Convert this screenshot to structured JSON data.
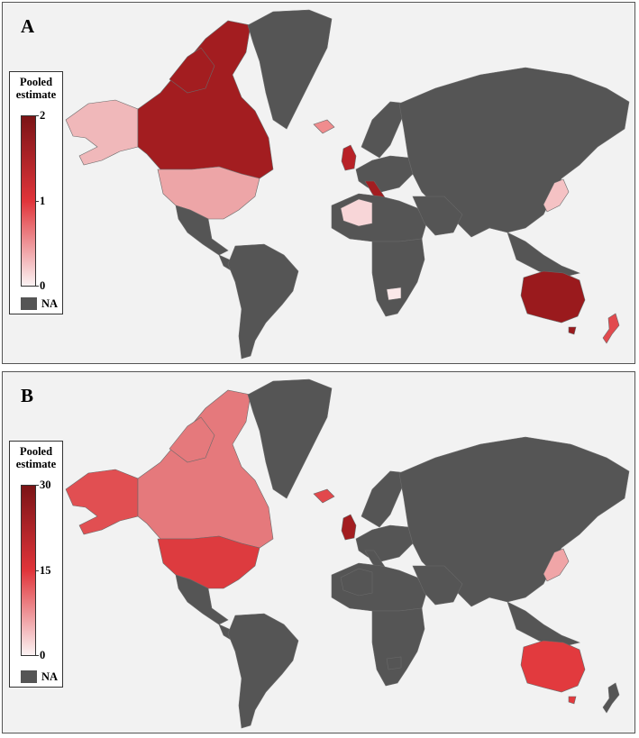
{
  "panels": [
    {
      "letter": "A",
      "legend": {
        "title": "Pooled estimate",
        "ticks": [
          "2",
          "1",
          "0"
        ],
        "na_label": "NA"
      },
      "colors": {
        "canada": "#a31d20",
        "usa": "#eda5a7",
        "alaska": "#f0b8ba",
        "greenland": "#555555",
        "uk": "#b82127",
        "iceland": "#f08c8e",
        "italy": "#a31d20",
        "europe": "#555555",
        "algeria": "#f8d6d8",
        "australia": "#9a1a1d",
        "nz": "#e24a4e",
        "japan": "#f5c2c4",
        "south_africa": "#fbe8e9",
        "other": "#555555",
        "ocean": "#f2f2f2"
      }
    },
    {
      "letter": "B",
      "legend": {
        "title": "Pooled estimate",
        "ticks": [
          "30",
          "15",
          "0"
        ],
        "na_label": "NA"
      },
      "colors": {
        "canada": "#e5797c",
        "usa": "#dd3b3f",
        "alaska": "#e14f52",
        "greenland": "#555555",
        "uk": "#a31d20",
        "iceland": "#e2484c",
        "italy": "#555555",
        "europe": "#555555",
        "algeria": "#555555",
        "australia": "#e23a3e",
        "nz": "#555555",
        "japan": "#f0a5a7",
        "south_africa": "#555555",
        "other": "#555555",
        "ocean": "#f2f2f2"
      }
    }
  ]
}
